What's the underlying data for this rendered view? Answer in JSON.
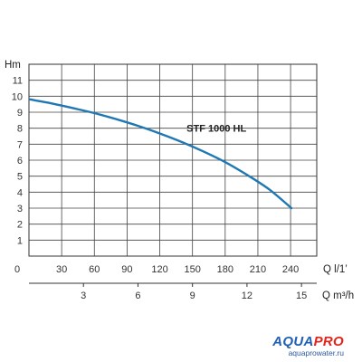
{
  "chart_data": {
    "type": "line",
    "y_axis": {
      "label": "Hm",
      "ticks": [
        1,
        2,
        3,
        4,
        5,
        6,
        7,
        8,
        9,
        10,
        11
      ],
      "ylim": [
        0,
        12
      ]
    },
    "x_axis_primary": {
      "label": "Q l/1’",
      "ticks": [
        0,
        30,
        60,
        90,
        120,
        150,
        180,
        210,
        240
      ],
      "xlim": [
        0,
        264
      ]
    },
    "x_axis_secondary": {
      "label": "Q m³/h",
      "ticks": [
        3,
        6,
        9,
        12,
        15
      ]
    },
    "grid": true,
    "series": [
      {
        "name": "STF 1000 HL",
        "color": "#1f78b4",
        "x": [
          0,
          20,
          40,
          60,
          80,
          100,
          120,
          140,
          160,
          180,
          200,
          220,
          240
        ],
        "y": [
          9.8,
          9.55,
          9.25,
          8.93,
          8.55,
          8.13,
          7.65,
          7.12,
          6.52,
          5.85,
          5.05,
          4.15,
          3.0
        ]
      }
    ]
  },
  "brand": {
    "name_part1": "AQUA",
    "name_part2": "PRO",
    "site": "aquaprowater.ru",
    "color_part1": "#1f5fb5",
    "color_part2": "#e2231a"
  }
}
